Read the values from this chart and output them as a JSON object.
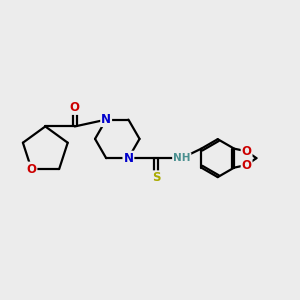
{
  "bg_color": "#ececec",
  "atom_colors": {
    "C": "#000000",
    "N": "#0000cc",
    "O": "#cc0000",
    "S": "#aaaa00",
    "H": "#4a9090"
  },
  "bond_color": "#000000",
  "bond_width": 1.6,
  "figsize": [
    3.0,
    3.0
  ],
  "dpi": 100
}
